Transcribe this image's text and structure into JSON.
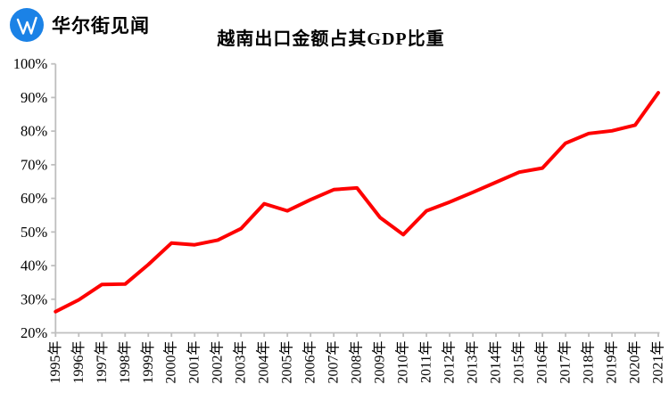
{
  "brand": {
    "name": "华尔街见闻",
    "logo_letter": "W",
    "logo_color": "#1b82e6"
  },
  "chart_data": {
    "type": "line",
    "title": "越南出口金额占其GDP比重",
    "xlabel": "",
    "ylabel": "",
    "x": [
      "1995年",
      "1996年",
      "1997年",
      "1998年",
      "1999年",
      "2000年",
      "2001年",
      "2002年",
      "2003年",
      "2004年",
      "2005年",
      "2006年",
      "2007年",
      "2008年",
      "2009年",
      "2010年",
      "2011年",
      "2012年",
      "2013年",
      "2014年",
      "2015年",
      "2016年",
      "2017年",
      "2018年",
      "2019年",
      "2020年",
      "2021年"
    ],
    "series": [
      {
        "name": "越南出口金额占其GDP比重",
        "values": [
          26.3,
          29.8,
          34.4,
          34.5,
          40.3,
          46.7,
          46.2,
          47.6,
          51.0,
          58.4,
          56.3,
          59.6,
          62.6,
          63.1,
          54.3,
          49.2,
          56.3,
          58.9,
          61.8,
          64.8,
          67.8,
          69.0,
          76.4,
          79.3,
          80.1,
          81.8,
          91.4
        ]
      }
    ],
    "ylim": [
      20,
      100
    ],
    "ytick_step": 10,
    "ytick_labels": [
      "20%",
      "30%",
      "40%",
      "50%",
      "60%",
      "70%",
      "80%",
      "90%",
      "100%"
    ],
    "grid": false,
    "legend_position": "none",
    "line_color": "#fe0000",
    "axis_color": "#bfbfbf",
    "text_color": "#000000"
  }
}
